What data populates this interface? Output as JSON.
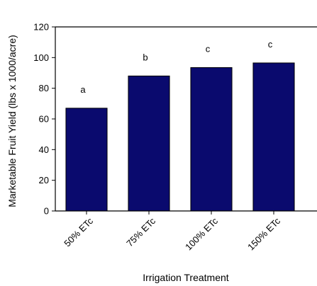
{
  "chart_data": {
    "type": "bar",
    "title": "",
    "xlabel": "Irrigation Treatment",
    "ylabel": "Marketable Fruit Yield (lbs x 1000/acre)",
    "categories": [
      "50% ETc",
      "75% ETc",
      "100% ETc",
      "150% ETc"
    ],
    "values": [
      67,
      88,
      93.5,
      96.5
    ],
    "annotations": [
      "a",
      "b",
      "c",
      "c"
    ],
    "ylim": [
      0,
      120
    ],
    "yticks": [
      "0",
      "20",
      "40",
      "60",
      "80",
      "100",
      "120"
    ],
    "grid": false,
    "bar_color": "#0a0a6e"
  }
}
